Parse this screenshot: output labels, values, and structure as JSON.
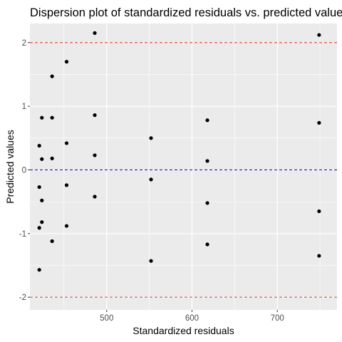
{
  "chart_data": {
    "type": "scatter",
    "title": "Dispersion plot of standardized residuals vs. predicted values",
    "xlabel": "Standardized residuals",
    "ylabel": "Predicted values",
    "xlim": [
      410,
      770
    ],
    "ylim": [
      -2.2,
      2.3
    ],
    "x_ticks": [
      {
        "value": 500,
        "label": "500"
      },
      {
        "value": 600,
        "label": "600"
      },
      {
        "value": 700,
        "label": "700"
      }
    ],
    "y_ticks": [
      {
        "value": -2,
        "label": "-2"
      },
      {
        "value": -1,
        "label": "-1"
      },
      {
        "value": 0,
        "label": "0"
      },
      {
        "value": 1,
        "label": "1"
      },
      {
        "value": 2,
        "label": "2"
      }
    ],
    "reference_lines": [
      {
        "y": 2,
        "color": "#e4393b",
        "style": "dashed"
      },
      {
        "y": 0,
        "color": "#1f1fa8",
        "style": "dashed"
      },
      {
        "y": -2,
        "color": "#e4393b",
        "style": "dashed"
      }
    ],
    "grid": true,
    "panel_background": "#ebebeb",
    "grid_color": "#ffffff",
    "point_color": "#000000",
    "points": [
      {
        "x": 421,
        "y": 0.38
      },
      {
        "x": 421,
        "y": -0.27
      },
      {
        "x": 421,
        "y": -0.91
      },
      {
        "x": 421,
        "y": -1.57
      },
      {
        "x": 424,
        "y": 0.82
      },
      {
        "x": 424,
        "y": 0.17
      },
      {
        "x": 424,
        "y": -0.48
      },
      {
        "x": 424,
        "y": -0.82
      },
      {
        "x": 436,
        "y": 1.47
      },
      {
        "x": 436,
        "y": 0.82
      },
      {
        "x": 436,
        "y": 0.18
      },
      {
        "x": 436,
        "y": -1.12
      },
      {
        "x": 453,
        "y": 1.7
      },
      {
        "x": 453,
        "y": 0.42
      },
      {
        "x": 453,
        "y": -0.24
      },
      {
        "x": 453,
        "y": -0.88
      },
      {
        "x": 486,
        "y": 2.15
      },
      {
        "x": 486,
        "y": 0.86
      },
      {
        "x": 486,
        "y": 0.23
      },
      {
        "x": 486,
        "y": -0.42
      },
      {
        "x": 552,
        "y": 0.5
      },
      {
        "x": 552,
        "y": -0.15
      },
      {
        "x": 552,
        "y": -1.43
      },
      {
        "x": 618,
        "y": 0.78
      },
      {
        "x": 618,
        "y": 0.14
      },
      {
        "x": 618,
        "y": -0.52
      },
      {
        "x": 618,
        "y": -1.17
      },
      {
        "x": 749,
        "y": 2.12
      },
      {
        "x": 749,
        "y": 0.74
      },
      {
        "x": 749,
        "y": -0.65
      },
      {
        "x": 749,
        "y": -1.35
      }
    ]
  }
}
